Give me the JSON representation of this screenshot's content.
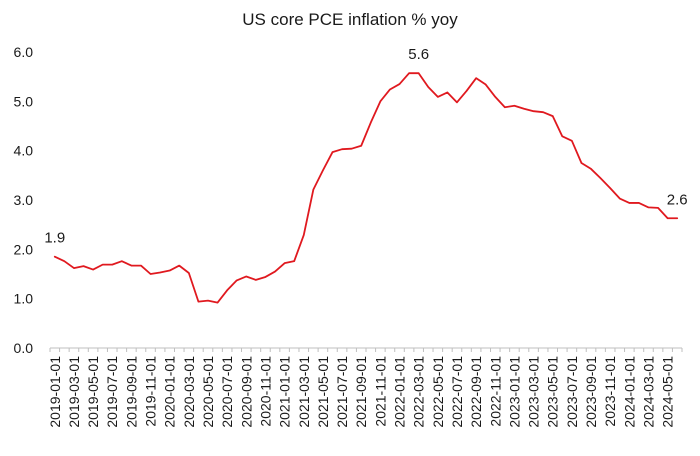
{
  "chart_data": {
    "type": "line",
    "title": "US core PCE inflation % yoy",
    "xlabel": "",
    "ylabel": "",
    "ylim": [
      0,
      6
    ],
    "yticks": [
      "0.0",
      "1.0",
      "2.0",
      "3.0",
      "4.0",
      "5.0",
      "6.0"
    ],
    "grid": false,
    "legend": "none",
    "line_color": "#e0191f",
    "x": [
      "2019-01-01",
      "2019-02-01",
      "2019-03-01",
      "2019-04-01",
      "2019-05-01",
      "2019-06-01",
      "2019-07-01",
      "2019-08-01",
      "2019-09-01",
      "2019-10-01",
      "2019-11-01",
      "2019-12-01",
      "2020-01-01",
      "2020-02-01",
      "2020-03-01",
      "2020-04-01",
      "2020-05-01",
      "2020-06-01",
      "2020-07-01",
      "2020-08-01",
      "2020-09-01",
      "2020-10-01",
      "2020-11-01",
      "2020-12-01",
      "2021-01-01",
      "2021-02-01",
      "2021-03-01",
      "2021-04-01",
      "2021-05-01",
      "2021-06-01",
      "2021-07-01",
      "2021-08-01",
      "2021-09-01",
      "2021-10-01",
      "2021-11-01",
      "2021-12-01",
      "2022-01-01",
      "2022-02-01",
      "2022-03-01",
      "2022-04-01",
      "2022-05-01",
      "2022-06-01",
      "2022-07-01",
      "2022-08-01",
      "2022-09-01",
      "2022-10-01",
      "2022-11-01",
      "2022-12-01",
      "2023-01-01",
      "2023-02-01",
      "2023-03-01",
      "2023-04-01",
      "2023-05-01",
      "2023-06-01",
      "2023-07-01",
      "2023-08-01",
      "2023-09-01",
      "2023-10-01",
      "2023-11-01",
      "2023-12-01",
      "2024-01-01",
      "2024-02-01",
      "2024-03-01",
      "2024-04-01",
      "2024-05-01",
      "2024-06-01"
    ],
    "x_tick_labels": [
      "2019-01-01",
      "2019-03-01",
      "2019-05-01",
      "2019-07-01",
      "2019-09-01",
      "2019-11-01",
      "2020-01-01",
      "2020-03-01",
      "2020-05-01",
      "2020-07-01",
      "2020-09-01",
      "2020-11-01",
      "2021-01-01",
      "2021-03-01",
      "2021-05-01",
      "2021-07-01",
      "2021-09-01",
      "2021-11-01",
      "2022-01-01",
      "2022-03-01",
      "2022-05-01",
      "2022-07-01",
      "2022-09-01",
      "2022-11-01",
      "2023-01-01",
      "2023-03-01",
      "2023-05-01",
      "2023-07-01",
      "2023-09-01",
      "2023-11-01",
      "2024-01-01",
      "2024-03-01",
      "2024-05-01"
    ],
    "series": [
      {
        "values": [
          1.85,
          1.76,
          1.62,
          1.66,
          1.59,
          1.69,
          1.69,
          1.76,
          1.67,
          1.67,
          1.5,
          1.53,
          1.57,
          1.67,
          1.52,
          0.94,
          0.96,
          0.92,
          1.17,
          1.37,
          1.45,
          1.38,
          1.44,
          1.55,
          1.72,
          1.76,
          2.29,
          3.21,
          3.6,
          3.97,
          4.03,
          4.04,
          4.1,
          4.57,
          5.0,
          5.24,
          5.35,
          5.57,
          5.57,
          5.29,
          5.09,
          5.18,
          4.98,
          5.21,
          5.47,
          5.34,
          5.09,
          4.88,
          4.91,
          4.85,
          4.8,
          4.78,
          4.7,
          4.29,
          4.2,
          3.75,
          3.63,
          3.44,
          3.24,
          3.03,
          2.94,
          2.94,
          2.85,
          2.84,
          2.63,
          2.63
        ]
      }
    ],
    "annotations": [
      {
        "text": "1.9",
        "x": "2019-01-01",
        "y": 1.85
      },
      {
        "text": "5.6",
        "x": "2022-03-01",
        "y": 5.57
      },
      {
        "text": "2.6",
        "x": "2024-06-01",
        "y": 2.63
      }
    ]
  }
}
